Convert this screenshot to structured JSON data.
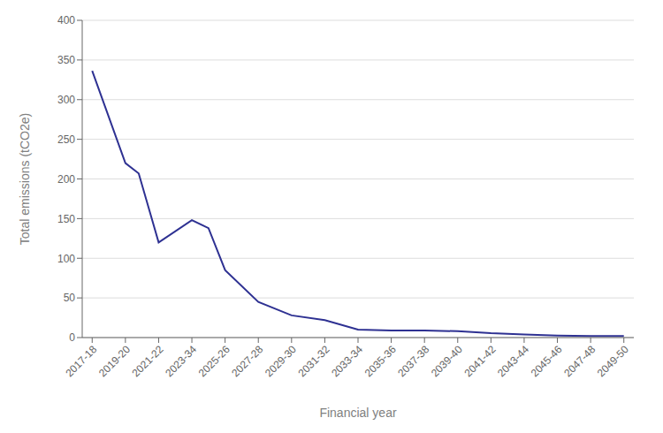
{
  "chart_data": {
    "type": "line",
    "xlabel": "Financial year",
    "ylabel": "Total emissions (tCO2e)",
    "x": [
      0,
      1,
      1.4,
      2,
      3,
      3.5,
      4,
      5,
      6,
      7,
      8,
      9,
      10,
      11,
      12,
      13,
      14,
      15,
      16
    ],
    "values": [
      336.37,
      220.0,
      207.0,
      120.0,
      148.0,
      138.0,
      85.0,
      45.0,
      28.0,
      22.0,
      10.0,
      9.0,
      9.0,
      8.0,
      5.5,
      4.0,
      2.5,
      1.85,
      1.85
    ],
    "color": "#2e3192",
    "xlim": [
      -0.3,
      16.3
    ],
    "xticks": [
      {
        "value": 0,
        "label": "2017-18"
      },
      {
        "value": 1,
        "label": "2019-20"
      },
      {
        "value": 2,
        "label": "2021-22"
      },
      {
        "value": 3,
        "label": "2023-34"
      },
      {
        "value": 4,
        "label": "2025-26"
      },
      {
        "value": 5,
        "label": "2027-28"
      },
      {
        "value": 6,
        "label": "2029-30"
      },
      {
        "value": 7,
        "label": "2031-32"
      },
      {
        "value": 8,
        "label": "2033-34"
      },
      {
        "value": 9,
        "label": "2035-36"
      },
      {
        "value": 10,
        "label": "2037-38"
      },
      {
        "value": 11,
        "label": "2039-40"
      },
      {
        "value": 12,
        "label": "2041-42"
      },
      {
        "value": 13,
        "label": "2043-44"
      },
      {
        "value": 14,
        "label": "2045-46"
      },
      {
        "value": 15,
        "label": "2047-48"
      },
      {
        "value": 16,
        "label": "2049-50"
      }
    ],
    "ylim": [
      0,
      400
    ],
    "yticks": [
      0,
      50,
      100,
      150,
      200,
      250,
      300,
      350,
      400
    ],
    "grid": "y"
  }
}
